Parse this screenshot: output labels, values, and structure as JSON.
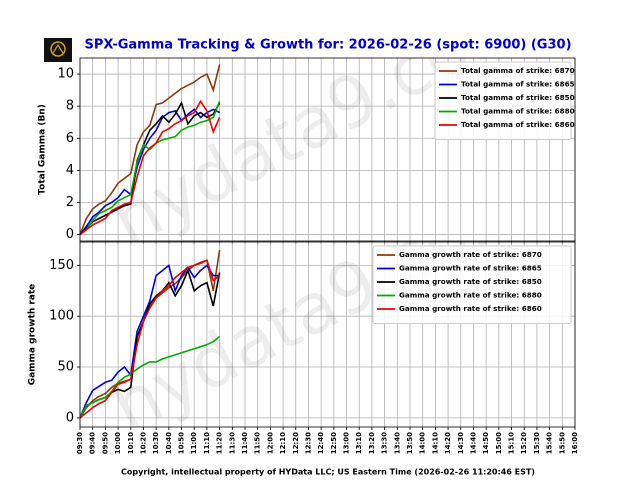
{
  "title": "SPX-Gamma Tracking & Growth for: 2026-02-26 (spot: 6900) (G30)",
  "footer": "Copyright, intellectual property of HYData LLC; US Eastern Time (2026-02-26 11:20:46 EST)",
  "watermark": "hydata9.com",
  "chart_data": [
    {
      "type": "line",
      "ylabel": "Total Gamma (Bn)",
      "grid": true,
      "legend": "upper right",
      "x": [
        570,
        575,
        580,
        585,
        590,
        595,
        600,
        605,
        610,
        615,
        620,
        625,
        630,
        635,
        640,
        645,
        650,
        655,
        660,
        665,
        670,
        675,
        680
      ],
      "xlim": [
        570,
        960
      ],
      "xticks": [
        {
          "value": 570,
          "label": "09:30"
        },
        {
          "value": 580,
          "label": "09:40"
        },
        {
          "value": 590,
          "label": "09:50"
        },
        {
          "value": 600,
          "label": "10:00"
        },
        {
          "value": 610,
          "label": "10:10"
        },
        {
          "value": 620,
          "label": "10:20"
        },
        {
          "value": 630,
          "label": "10:30"
        },
        {
          "value": 640,
          "label": "10:40"
        },
        {
          "value": 650,
          "label": "10:50"
        },
        {
          "value": 660,
          "label": "11:00"
        },
        {
          "value": 670,
          "label": "11:10"
        },
        {
          "value": 680,
          "label": "11:20"
        },
        {
          "value": 690,
          "label": "11:30"
        },
        {
          "value": 700,
          "label": "11:40"
        },
        {
          "value": 710,
          "label": "11:50"
        },
        {
          "value": 720,
          "label": "12:00"
        },
        {
          "value": 730,
          "label": "12:10"
        },
        {
          "value": 740,
          "label": "12:20"
        },
        {
          "value": 750,
          "label": "12:30"
        },
        {
          "value": 760,
          "label": "12:40"
        },
        {
          "value": 770,
          "label": "12:50"
        },
        {
          "value": 780,
          "label": "13:00"
        },
        {
          "value": 790,
          "label": "13:10"
        },
        {
          "value": 800,
          "label": "13:20"
        },
        {
          "value": 810,
          "label": "13:30"
        },
        {
          "value": 820,
          "label": "13:40"
        },
        {
          "value": 830,
          "label": "13:50"
        },
        {
          "value": 840,
          "label": "14:00"
        },
        {
          "value": 850,
          "label": "14:10"
        },
        {
          "value": 860,
          "label": "14:20"
        },
        {
          "value": 870,
          "label": "14:30"
        },
        {
          "value": 880,
          "label": "14:40"
        },
        {
          "value": 890,
          "label": "14:50"
        },
        {
          "value": 900,
          "label": "15:00"
        },
        {
          "value": 910,
          "label": "15:10"
        },
        {
          "value": 920,
          "label": "15:20"
        },
        {
          "value": 930,
          "label": "15:30"
        },
        {
          "value": 940,
          "label": "15:40"
        },
        {
          "value": 950,
          "label": "15:50"
        },
        {
          "value": 960,
          "label": "16:00"
        }
      ],
      "ylim": [
        -0.4,
        11
      ],
      "yticks": [
        0,
        2,
        4,
        6,
        8,
        10
      ],
      "series": [
        {
          "name": "Total gamma of strike: 6870",
          "color": "#8b3a0f",
          "values": [
            0,
            1.0,
            1.6,
            1.9,
            2.1,
            2.6,
            3.2,
            3.5,
            3.8,
            5.6,
            6.4,
            6.8,
            8.1,
            8.2,
            8.5,
            8.8,
            9.1,
            9.3,
            9.5,
            9.8,
            10.0,
            9.0,
            10.6
          ]
        },
        {
          "name": "Total gamma of strike: 6865",
          "color": "#0000dd",
          "values": [
            0,
            0.5,
            1.1,
            1.4,
            1.8,
            2.0,
            2.3,
            2.8,
            2.5,
            4.2,
            5.3,
            6.0,
            6.5,
            7.3,
            7.6,
            7.7,
            7.1,
            7.5,
            7.8,
            7.3,
            7.6,
            7.8,
            7.6
          ]
        },
        {
          "name": "Total gamma of strike: 6850",
          "color": "#000000",
          "values": [
            0,
            0.4,
            0.8,
            1.0,
            1.2,
            1.4,
            1.6,
            1.8,
            1.9,
            4.6,
            5.6,
            6.5,
            6.9,
            7.4,
            7.0,
            7.5,
            8.2,
            6.9,
            7.4,
            7.6,
            7.3,
            7.5,
            8.2
          ]
        },
        {
          "name": "Total gamma of strike: 6880",
          "color": "#00aa00",
          "values": [
            0,
            0.3,
            0.9,
            1.3,
            1.5,
            1.7,
            2.1,
            2.3,
            2.5,
            4.5,
            5.6,
            5.3,
            5.7,
            5.9,
            6.0,
            6.1,
            6.5,
            6.7,
            6.8,
            7.0,
            7.1,
            7.3,
            8.3
          ]
        },
        {
          "name": "Total gamma of strike: 6860",
          "color": "#ee0000",
          "values": [
            0,
            0.3,
            0.6,
            0.8,
            1.0,
            1.5,
            1.7,
            1.9,
            2.0,
            3.6,
            4.9,
            5.4,
            5.7,
            6.4,
            6.6,
            6.9,
            7.1,
            7.4,
            7.6,
            8.3,
            7.7,
            6.4,
            7.3
          ]
        }
      ]
    },
    {
      "type": "line",
      "ylabel": "Gamma growth rate",
      "grid": true,
      "legend": "upper right",
      "x": [
        570,
        575,
        580,
        585,
        590,
        595,
        600,
        605,
        610,
        615,
        620,
        625,
        630,
        635,
        640,
        645,
        650,
        655,
        660,
        665,
        670,
        675,
        680
      ],
      "xlim": [
        570,
        960
      ],
      "xticks": [
        {
          "value": 570,
          "label": "09:30"
        },
        {
          "value": 580,
          "label": "09:40"
        },
        {
          "value": 590,
          "label": "09:50"
        },
        {
          "value": 600,
          "label": "10:00"
        },
        {
          "value": 610,
          "label": "10:10"
        },
        {
          "value": 620,
          "label": "10:20"
        },
        {
          "value": 630,
          "label": "10:30"
        },
        {
          "value": 640,
          "label": "10:40"
        },
        {
          "value": 650,
          "label": "10:50"
        },
        {
          "value": 660,
          "label": "11:00"
        },
        {
          "value": 670,
          "label": "11:10"
        },
        {
          "value": 680,
          "label": "11:20"
        },
        {
          "value": 690,
          "label": "11:30"
        },
        {
          "value": 700,
          "label": "11:40"
        },
        {
          "value": 710,
          "label": "11:50"
        },
        {
          "value": 720,
          "label": "12:00"
        },
        {
          "value": 730,
          "label": "12:10"
        },
        {
          "value": 740,
          "label": "12:20"
        },
        {
          "value": 750,
          "label": "12:30"
        },
        {
          "value": 760,
          "label": "12:40"
        },
        {
          "value": 770,
          "label": "12:50"
        },
        {
          "value": 780,
          "label": "13:00"
        },
        {
          "value": 790,
          "label": "13:10"
        },
        {
          "value": 800,
          "label": "13:20"
        },
        {
          "value": 810,
          "label": "13:30"
        },
        {
          "value": 820,
          "label": "13:40"
        },
        {
          "value": 830,
          "label": "13:50"
        },
        {
          "value": 840,
          "label": "14:00"
        },
        {
          "value": 850,
          "label": "14:10"
        },
        {
          "value": 860,
          "label": "14:20"
        },
        {
          "value": 870,
          "label": "14:30"
        },
        {
          "value": 880,
          "label": "14:40"
        },
        {
          "value": 890,
          "label": "14:50"
        },
        {
          "value": 900,
          "label": "15:00"
        },
        {
          "value": 910,
          "label": "15:10"
        },
        {
          "value": 920,
          "label": "15:20"
        },
        {
          "value": 930,
          "label": "15:30"
        },
        {
          "value": 940,
          "label": "15:40"
        },
        {
          "value": 950,
          "label": "15:50"
        },
        {
          "value": 960,
          "label": "16:00"
        }
      ],
      "ylim": [
        -9,
        173
      ],
      "yticks": [
        0,
        50,
        100,
        150
      ],
      "series": [
        {
          "name": "Gamma growth rate of strike: 6870",
          "color": "#8b3a0f",
          "values": [
            0,
            10,
            17,
            21,
            24,
            30,
            34,
            36,
            38,
            80,
            95,
            110,
            118,
            123,
            128,
            132,
            138,
            145,
            150,
            152,
            155,
            125,
            165
          ]
        },
        {
          "name": "Gamma growth rate of strike: 6865",
          "color": "#0000dd",
          "values": [
            0,
            15,
            27,
            31,
            35,
            37,
            45,
            50,
            42,
            85,
            100,
            115,
            140,
            145,
            150,
            125,
            140,
            148,
            138,
            145,
            150,
            140,
            140
          ]
        },
        {
          "name": "Gamma growth rate of strike: 6850",
          "color": "#000000",
          "values": [
            0,
            12,
            15,
            18,
            20,
            25,
            28,
            26,
            30,
            80,
            95,
            112,
            120,
            125,
            133,
            120,
            130,
            145,
            125,
            130,
            133,
            110,
            143
          ]
        },
        {
          "name": "Gamma growth rate of strike: 6880",
          "color": "#00aa00",
          "values": [
            0,
            12,
            15,
            18,
            20,
            26,
            35,
            40,
            43,
            48,
            52,
            55,
            55,
            58,
            60,
            62,
            64,
            66,
            68,
            70,
            72,
            75,
            80
          ]
        },
        {
          "name": "Gamma growth rate of strike: 6860",
          "color": "#ee0000",
          "values": [
            0,
            5,
            10,
            14,
            17,
            25,
            33,
            35,
            38,
            72,
            95,
            108,
            118,
            125,
            130,
            138,
            143,
            148,
            150,
            153,
            155,
            135,
            140
          ]
        }
      ]
    }
  ]
}
